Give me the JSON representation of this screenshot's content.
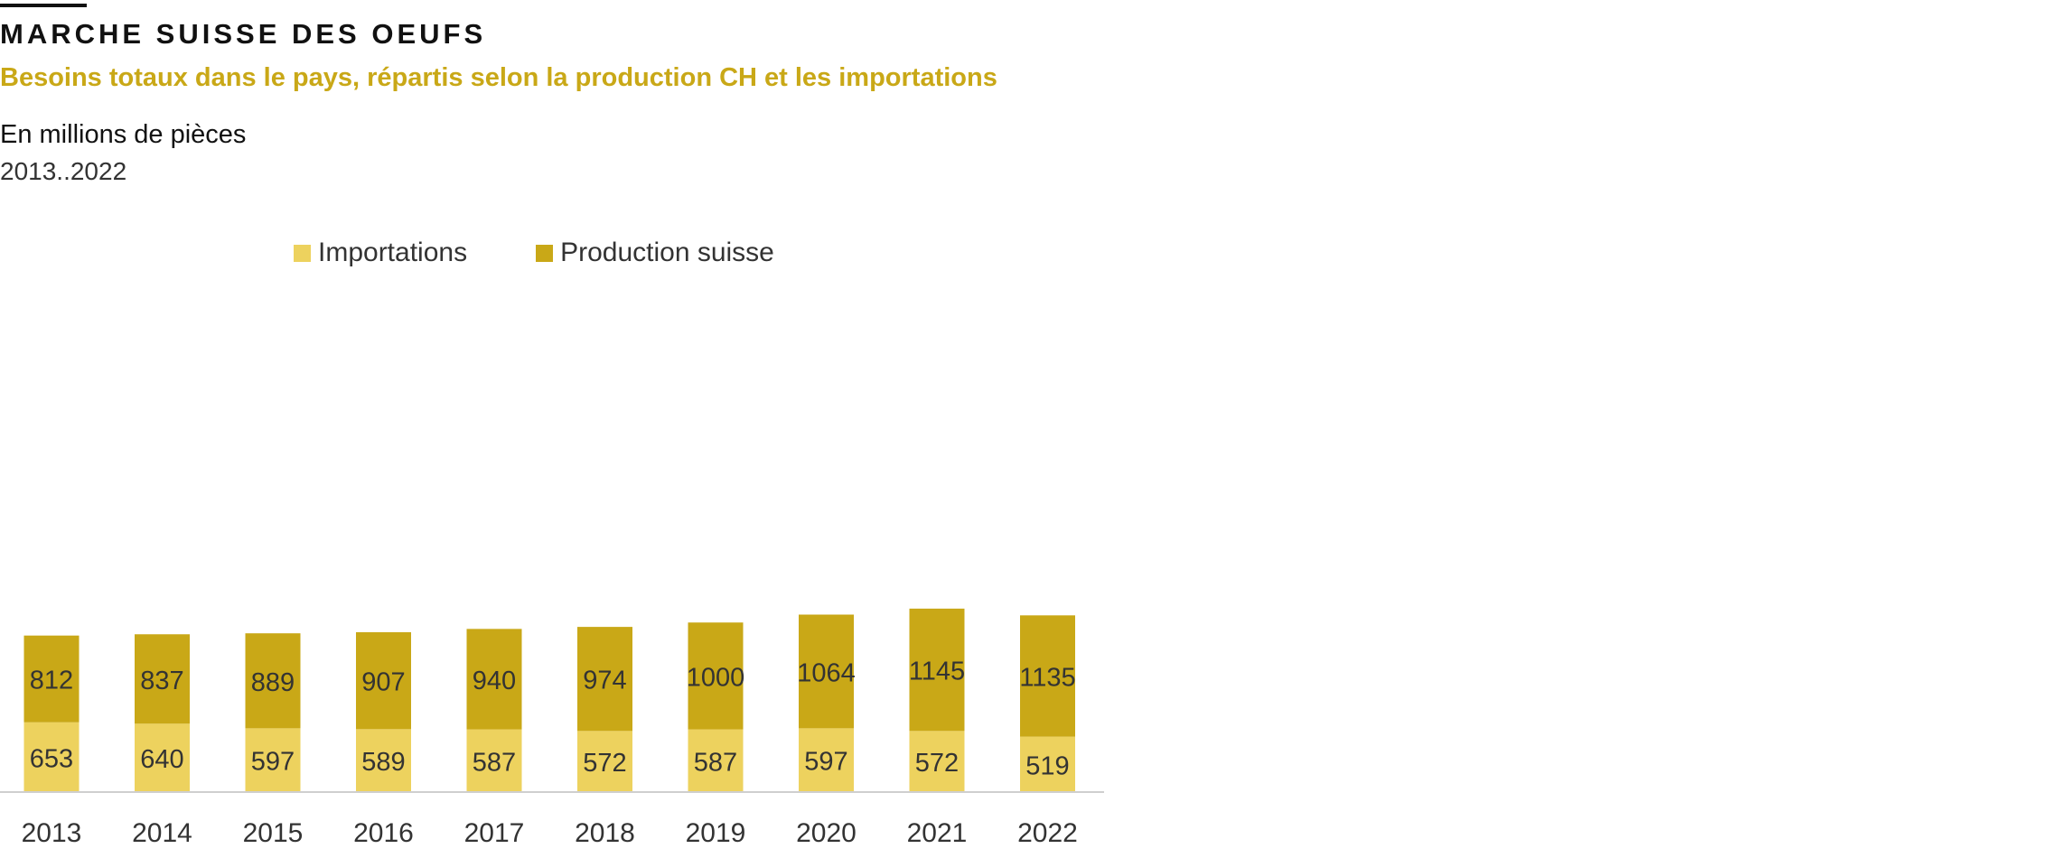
{
  "title": "MARCHE SUISSE DES OEUFS",
  "subtitle": "Besoins totaux dans le pays, répartis selon la production CH et les importations",
  "unit": "En millions de pièces",
  "period": "2013..2022",
  "colors": {
    "importations": "#edd25e",
    "production": "#c9a817",
    "accent": "#c9a817"
  },
  "legend": {
    "importations": "Importations",
    "production": "Production suisse"
  },
  "chart_data": {
    "type": "bar",
    "stacked": true,
    "title": "MARCHE SUISSE DES OEUFS",
    "subtitle": "Besoins totaux dans le pays, répartis selon la production CH et les importations",
    "ylabel": "En millions de pièces",
    "xlabel": "",
    "categories": [
      "2013",
      "2014",
      "2015",
      "2016",
      "2017",
      "2018",
      "2019",
      "2020",
      "2021",
      "2022"
    ],
    "series": [
      {
        "name": "Importations",
        "values": [
          653,
          640,
          597,
          589,
          587,
          572,
          587,
          597,
          572,
          519
        ]
      },
      {
        "name": "Production suisse",
        "values": [
          812,
          837,
          889,
          907,
          940,
          974,
          1000,
          1064,
          1145,
          1135
        ]
      }
    ],
    "ylim": [
      0,
      1800
    ],
    "grid": false,
    "legend_position": "top"
  }
}
